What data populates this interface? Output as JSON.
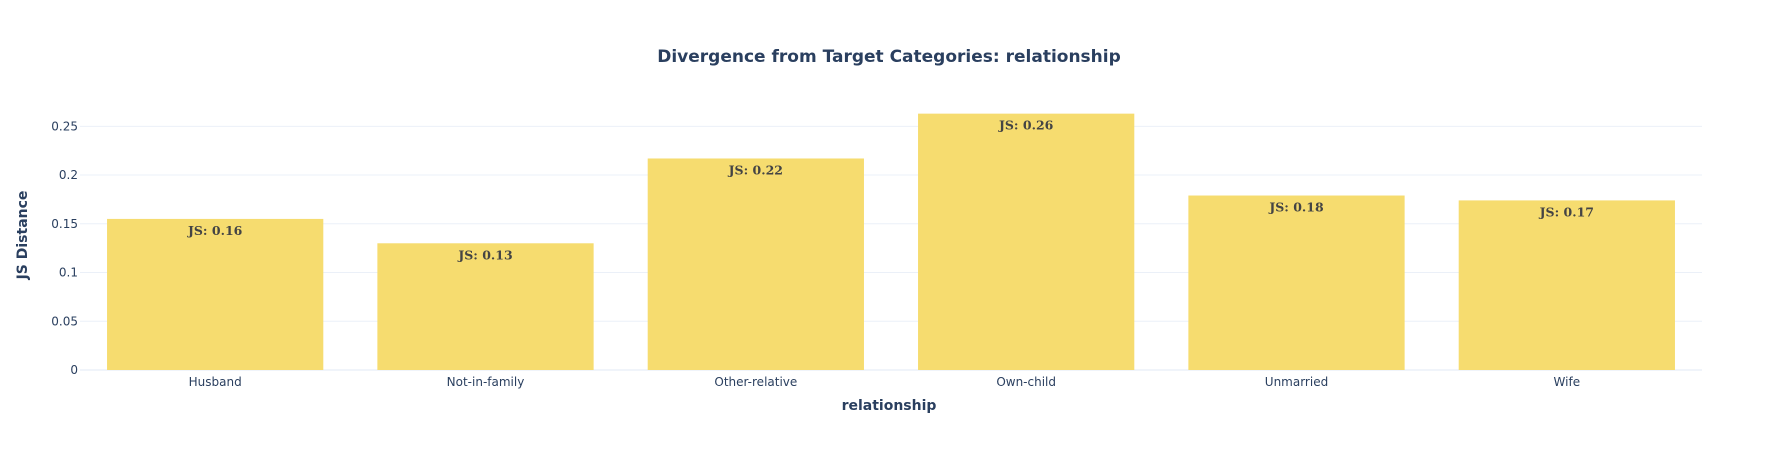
{
  "chart_data": {
    "type": "bar",
    "title": "Divergence from Target Categories: relationship",
    "xlabel": "relationship",
    "ylabel": "JS Distance",
    "categories": [
      "Husband",
      "Not-in-family",
      "Other-relative",
      "Own-child",
      "Unmarried",
      "Wife"
    ],
    "values": [
      0.155,
      0.13,
      0.217,
      0.263,
      0.179,
      0.174
    ],
    "text_labels": [
      "JS: 0.16",
      "JS: 0.13",
      "JS: 0.22",
      "JS: 0.26",
      "JS: 0.18",
      "JS: 0.17"
    ],
    "ylim": [
      0,
      0.277
    ],
    "yticks": [
      0,
      0.05,
      0.1,
      0.15,
      0.2,
      0.25
    ],
    "ytick_labels": [
      "0",
      "0.05",
      "0.1",
      "0.15",
      "0.2",
      "0.25"
    ],
    "bar_color": "#f6dc6f",
    "grid": true,
    "legend": "none"
  }
}
